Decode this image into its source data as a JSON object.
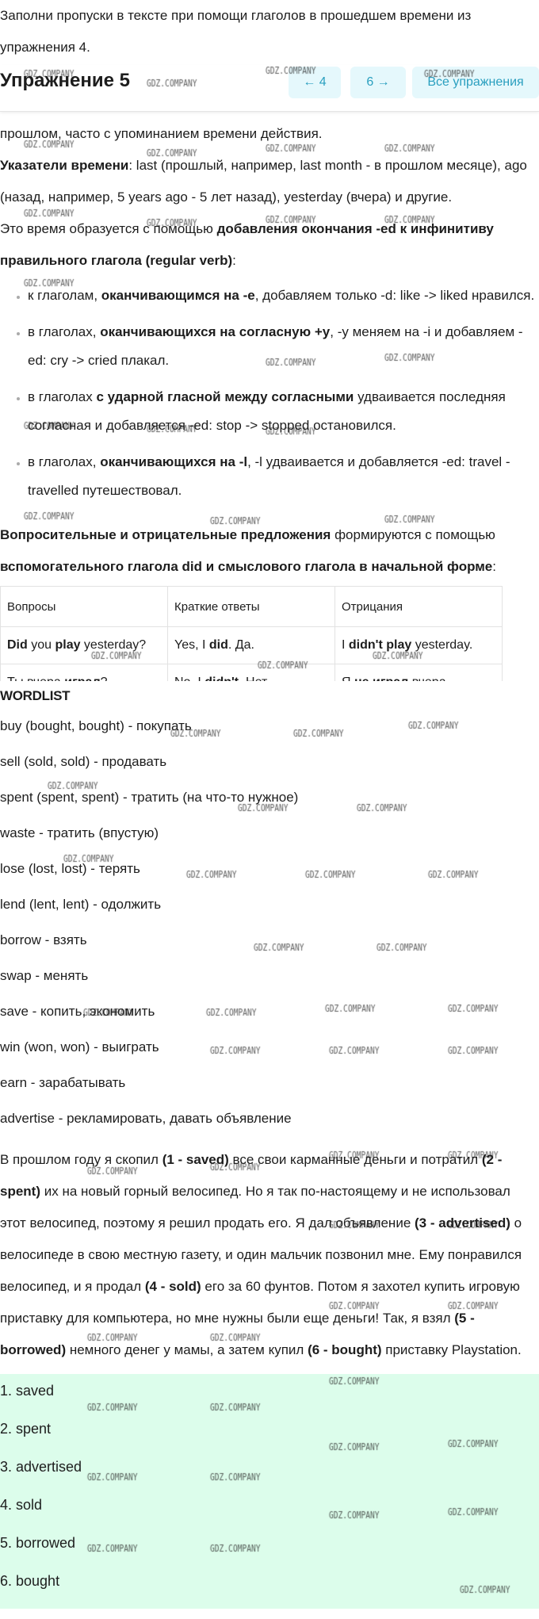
{
  "intro": {
    "text": "Заполни пропуски в тексте при помощи глаголов в прошедшем времени из упражнения 4."
  },
  "header": {
    "title": "Упражнение 5",
    "prev_label": "← 4",
    "next_label": "6 →",
    "all_label": "Все упражнения"
  },
  "theory": {
    "line1": "прошлом, часто с упоминанием времени действия.",
    "markers_label": "Указатели времени",
    "markers_text": ": last (прошлый, например, last month - в прошлом месяце), ago (назад, например, 5 years ago - 5 лет назад), yesterday (вчера) и другие.",
    "formation_pre": "Это время образуется с помощью ",
    "formation_bold": "добавления окончания -ed к инфинитиву правильного глагола (regular verb)",
    "formation_post": ":",
    "rules": [
      {
        "pre": "к глаголам, ",
        "bold": "оканчивающимся на -e",
        "post": ", добавляем только -d: like -> liked нравился."
      },
      {
        "pre": "в глаголах, ",
        "bold": "оканчивающихся на согласную +y",
        "post": ", -y меняем на -i и добавляем -ed: cry -> cried плакал."
      },
      {
        "pre": "в глаголах ",
        "bold": "с ударной гласной между согласными",
        "post": " удваивается последняя согласная и добавляется -ed: stop -> stopped остановился."
      },
      {
        "pre": "в глаголах, ",
        "bold": "оканчивающихся на -l",
        "post": ", -l удваивается и добавляется -ed: travel - travelled путешествовал."
      }
    ]
  },
  "questions": {
    "bold1": "Вопросительные и отрицательные предложения",
    "text1": " формируются с помощью ",
    "bold2": "вспомогательного глагола did и смыслового глагола в начальной форме",
    "text2": ":"
  },
  "table": {
    "headers": [
      "Вопросы",
      "Краткие ответы",
      "Отрицания"
    ],
    "row1": {
      "c1": [
        {
          "b": "Did"
        },
        {
          "t": " you "
        },
        {
          "b": "play"
        },
        {
          "t": " yesterday?"
        }
      ],
      "c2": [
        {
          "t": "Yes, I "
        },
        {
          "b": "did"
        },
        {
          "t": ". Да."
        }
      ],
      "c3": [
        {
          "t": "I "
        },
        {
          "b": "didn't play"
        },
        {
          "t": " yesterday."
        }
      ]
    },
    "row2": {
      "c1": [
        {
          "t": "Ты вчера "
        },
        {
          "b": "играл"
        },
        {
          "t": "?"
        }
      ],
      "c2": [
        {
          "t": "No, I "
        },
        {
          "b": "didn't"
        },
        {
          "t": ". Нет."
        }
      ],
      "c3": [
        {
          "t": "Я "
        },
        {
          "b": "не играл"
        },
        {
          "t": " вчера."
        }
      ]
    }
  },
  "wordlist": {
    "title": "WORDLIST",
    "items": [
      "buy (bought, bought) - покупать",
      "sell (sold, sold) - продавать",
      "spent (spent, spent) - тратить (на что-то нужное)",
      "waste - тратить (впустую)",
      "lose (lost, lost) - терять",
      "lend (lent, lent) - одолжить",
      "borrow - взять",
      "swap - менять",
      "save - копить, экономить",
      "win (won, won) - выиграть",
      "earn - зарабатывать",
      "advertise - рекламировать, давать объявление"
    ]
  },
  "story": [
    {
      "t": "В прошлом году я скопил "
    },
    {
      "b": "(1 - saved)"
    },
    {
      "t": " все свои карманные деньги и потратил "
    },
    {
      "b": "(2 - spent)"
    },
    {
      "t": " их на новый горный велосипед. Но я так по-настоящему и не использовал этот велосипед, поэтому я решил продать его. Я дал объявление "
    },
    {
      "b": "(3 - advertised)"
    },
    {
      "t": " о велосипеде в свою местную газету, и один мальчик позвонил мне. Ему понравился велосипед, и я продал "
    },
    {
      "b": "(4 - sold)"
    },
    {
      "t": " его за 60 фунтов. Потом я захотел купить игровую приставку для компьютера, но мне нужны были еще деньги! Так, я взял "
    },
    {
      "b": "(5 - borrowed)"
    },
    {
      "t": " немного денег у мамы, а затем купил "
    },
    {
      "b": "(6 - bought)"
    },
    {
      "t": " приставку Playstation."
    }
  ],
  "answers": [
    "1. saved",
    "2. spent",
    "3. advertised",
    "4. sold",
    "5. borrowed",
    "6. bought"
  ],
  "watermark": "GDZ.COMPANY",
  "colors": {
    "nav_button_bg": "#e5f8fc",
    "nav_button_text": "#2a9fbf",
    "answer_bg": "#dcfdeb"
  }
}
